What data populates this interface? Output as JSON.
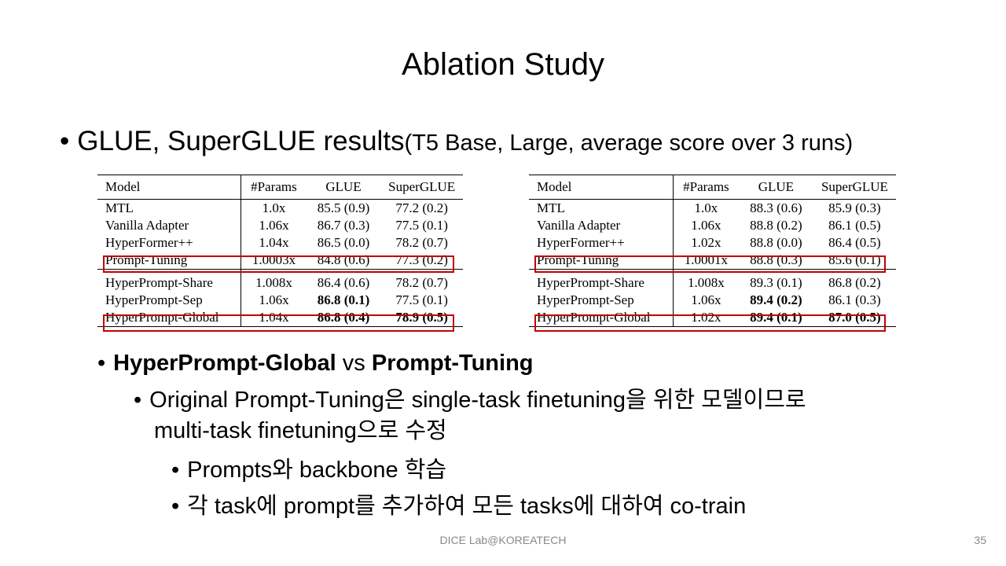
{
  "slide": {
    "title": "Ablation Study",
    "bullet_main": "GLUE, SuperGLUE results",
    "bullet_main_small": "(T5 Base, Large, average score over 3 runs)",
    "sub_bullet": {
      "part1": "HyperPrompt-Global",
      "part2": " vs ",
      "part3": "Prompt-Tuning"
    },
    "sub_sub_bullet_line1": "Original Prompt-Tuning은 single-task finetuning을 위한 모델이므로",
    "sub_sub_bullet_line2": "multi-task finetuning으로 수정",
    "level3_bullets": [
      "Prompts와 backbone 학습",
      "각 task에 prompt를 추가하여 모든 tasks에 대하여 co-train"
    ],
    "footer": "DICE Lab@KOREATECH",
    "page_number": "35",
    "highlight_color": "#c00000"
  },
  "tables": {
    "headers": [
      "Model",
      "#Params",
      "GLUE",
      "SuperGLUE"
    ],
    "base": [
      [
        "MTL",
        "1.0x",
        "85.5 (0.9)",
        "77.2 (0.2)"
      ],
      [
        "Vanilla Adapter",
        "1.06x",
        "86.7 (0.3)",
        "77.5 (0.1)"
      ],
      [
        "HyperFormer++",
        "1.04x",
        "86.5 (0.0)",
        "78.2 (0.7)"
      ],
      [
        "Prompt-Tuning",
        "1.0003x",
        "84.8 (0.6)",
        "77.3 (0.2)"
      ],
      [
        "HyperPrompt-Share",
        "1.008x",
        "86.4 (0.6)",
        "78.2 (0.7)"
      ],
      [
        "HyperPrompt-Sep",
        "1.06x",
        "86.8 (0.1)",
        "77.5 (0.1)"
      ],
      [
        "HyperPrompt-Global",
        "1.04x",
        "86.8 (0.4)",
        "78.9 (0.5)"
      ]
    ],
    "large": [
      [
        "MTL",
        "1.0x",
        "88.3 (0.6)",
        "85.9 (0.3)"
      ],
      [
        "Vanilla Adapter",
        "1.06x",
        "88.8 (0.2)",
        "86.1 (0.5)"
      ],
      [
        "HyperFormer++",
        "1.02x",
        "88.8 (0.0)",
        "86.4 (0.5)"
      ],
      [
        "Prompt-Tuning",
        "1.0001x",
        "88.8 (0.3)",
        "85.6 (0.1)"
      ],
      [
        "HyperPrompt-Share",
        "1.008x",
        "89.3 (0.1)",
        "86.8 (0.2)"
      ],
      [
        "HyperPrompt-Sep",
        "1.06x",
        "89.4 (0.2)",
        "86.1 (0.3)"
      ],
      [
        "HyperPrompt-Global",
        "1.02x",
        "89.4 (0.1)",
        "87.0 (0.5)"
      ]
    ]
  }
}
